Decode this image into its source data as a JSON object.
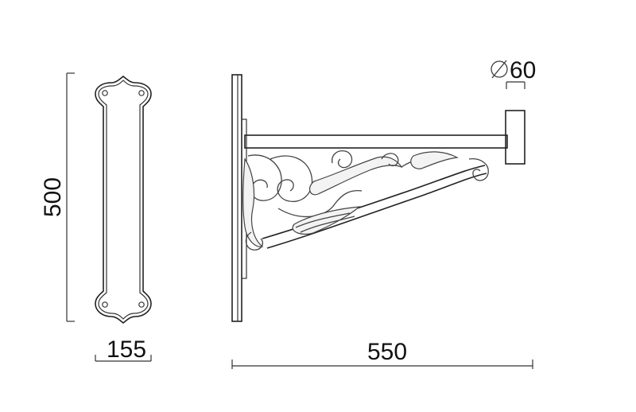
{
  "drawing": {
    "dimensions": {
      "height": "500",
      "plate_width": "155",
      "projection": "550",
      "pipe_diameter": "60"
    },
    "diameter_symbol": "⌀"
  }
}
